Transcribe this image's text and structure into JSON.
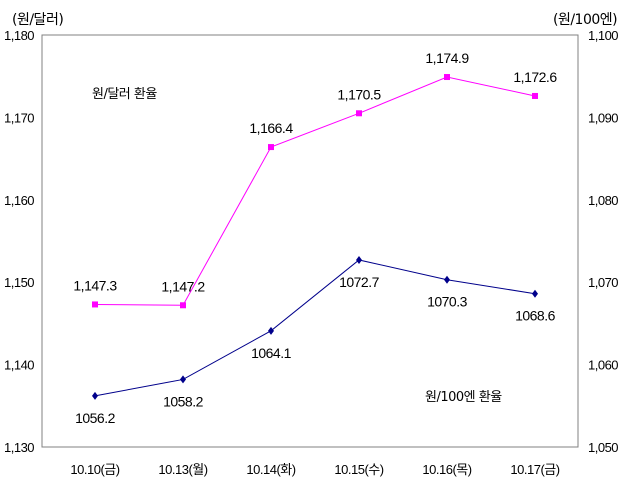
{
  "chart_data": {
    "type": "line",
    "categories": [
      "10.10(금)",
      "10.13(월)",
      "10.14(화)",
      "10.15(수)",
      "10.16(목)",
      "10.17(금)"
    ],
    "left_axis": {
      "unit": "(원/달러)",
      "ylim": [
        1130,
        1180
      ],
      "ticks": [
        "1,130",
        "1,140",
        "1,150",
        "1,160",
        "1,170",
        "1,180"
      ]
    },
    "right_axis": {
      "unit": "(원/100엔)",
      "ylim": [
        1050,
        1100
      ],
      "ticks": [
        "1,050",
        "1,060",
        "1,070",
        "1,080",
        "1,090",
        "1,100"
      ]
    },
    "series": [
      {
        "name": "원/달러 환율",
        "axis": "left",
        "color": "#ff00ff",
        "marker": "square",
        "values": [
          1147.3,
          1147.2,
          1166.4,
          1170.5,
          1174.9,
          1172.6
        ],
        "labels": [
          "1,147.3",
          "1,147.2",
          "1,166.4",
          "1,170.5",
          "1,174.9",
          "1,172.6"
        ]
      },
      {
        "name": "원/100엔 환율",
        "axis": "right",
        "color": "#00008b",
        "marker": "diamond",
        "values": [
          1056.2,
          1058.2,
          1064.1,
          1072.7,
          1070.3,
          1068.6
        ],
        "labels": [
          "1056.2",
          "1058.2",
          "1064.1",
          "1072.7",
          "1070.3",
          "1068.6"
        ]
      }
    ],
    "grid": false,
    "legend": "none"
  }
}
